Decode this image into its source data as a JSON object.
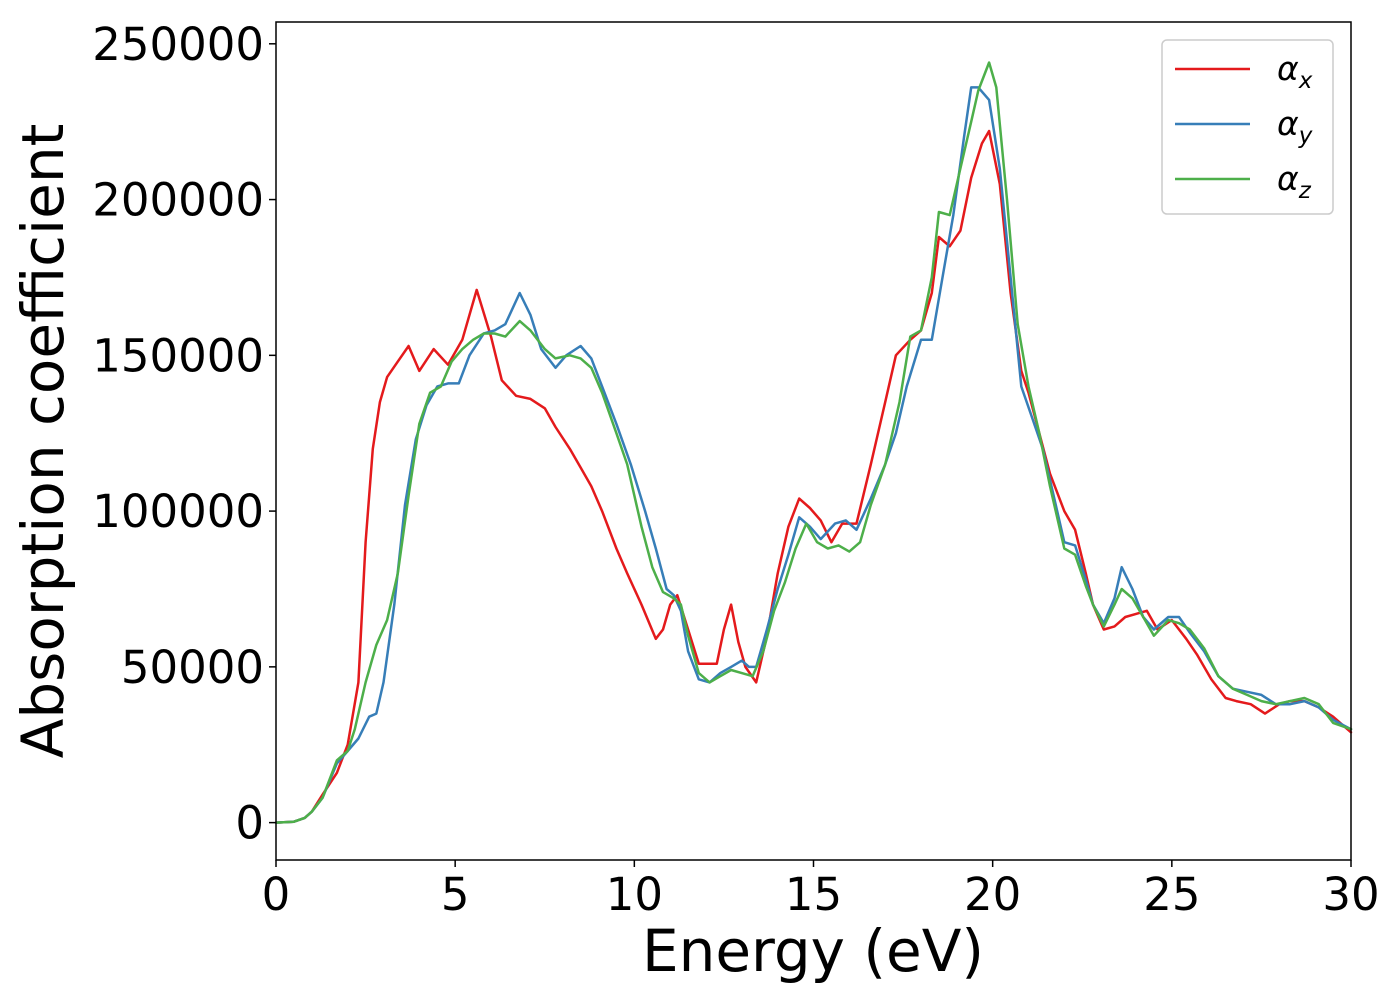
{
  "chart_data": {
    "type": "line",
    "xlabel": "Energy (eV)",
    "ylabel": "Absorption coefficient",
    "xlim": [
      0,
      30
    ],
    "ylim": [
      -12000,
      257000
    ],
    "xticks": [
      0,
      5,
      10,
      15,
      20,
      25,
      30
    ],
    "xtick_labels": [
      "0",
      "5",
      "10",
      "15",
      "20",
      "25",
      "30"
    ],
    "yticks": [
      0,
      50000,
      100000,
      150000,
      200000,
      250000
    ],
    "ytick_labels": [
      "0",
      "50000",
      "100000",
      "150000",
      "200000",
      "250000"
    ],
    "grid": false,
    "legend_position": "top-right",
    "series": [
      {
        "name": "α_x",
        "label_main": "α",
        "label_sub": "x",
        "color": "#e41a1c",
        "x": [
          0,
          0.5,
          0.8,
          1.0,
          1.3,
          1.7,
          2.0,
          2.3,
          2.5,
          2.7,
          2.9,
          3.1,
          3.4,
          3.7,
          4.0,
          4.4,
          4.8,
          5.2,
          5.6,
          6.0,
          6.3,
          6.7,
          7.1,
          7.5,
          7.8,
          8.2,
          8.5,
          8.8,
          9.1,
          9.5,
          9.8,
          10.2,
          10.6,
          10.8,
          11.0,
          11.2,
          11.5,
          11.8,
          12.0,
          12.3,
          12.5,
          12.7,
          12.9,
          13.1,
          13.4,
          13.7,
          14.0,
          14.3,
          14.6,
          14.9,
          15.2,
          15.5,
          15.8,
          16.2,
          16.6,
          17.0,
          17.3,
          17.7,
          18.0,
          18.3,
          18.5,
          18.8,
          19.1,
          19.4,
          19.7,
          19.9,
          20.2,
          20.5,
          20.8,
          21.0,
          21.3,
          21.6,
          22.0,
          22.3,
          22.6,
          22.8,
          23.1,
          23.4,
          23.7,
          24.0,
          24.3,
          24.6,
          25.0,
          25.4,
          25.7,
          26.1,
          26.5,
          26.8,
          27.2,
          27.6,
          28.0,
          28.3,
          28.7,
          29.1,
          29.5,
          30.0
        ],
        "y": [
          0,
          300,
          1500,
          3500,
          9000,
          16000,
          25000,
          45000,
          90000,
          120000,
          135000,
          143000,
          148000,
          153000,
          145000,
          152000,
          147000,
          155000,
          171000,
          156000,
          142000,
          137000,
          136000,
          133000,
          127000,
          120000,
          114000,
          108000,
          100000,
          88000,
          80000,
          70000,
          59000,
          62000,
          70000,
          73000,
          62000,
          51000,
          51000,
          51000,
          62000,
          70000,
          58000,
          50000,
          45000,
          60000,
          80000,
          95000,
          104000,
          101000,
          97000,
          90000,
          96000,
          96000,
          115000,
          135000,
          150000,
          155000,
          158000,
          170000,
          188000,
          185000,
          190000,
          207000,
          218000,
          222000,
          205000,
          170000,
          145000,
          138000,
          125000,
          112000,
          100000,
          94000,
          80000,
          70000,
          62000,
          63000,
          66000,
          67000,
          68000,
          62000,
          65000,
          59000,
          54000,
          46000,
          40000,
          39000,
          38000,
          35000,
          38000,
          39000,
          39000,
          37000,
          34000,
          29000
        ]
      },
      {
        "name": "α_y",
        "label_main": "α",
        "label_sub": "y",
        "color": "#377eb8",
        "x": [
          0,
          0.5,
          0.8,
          1.0,
          1.3,
          1.7,
          2.0,
          2.3,
          2.6,
          2.8,
          3.0,
          3.3,
          3.6,
          3.9,
          4.2,
          4.5,
          4.8,
          5.1,
          5.4,
          5.8,
          6.1,
          6.4,
          6.8,
          7.1,
          7.4,
          7.8,
          8.1,
          8.5,
          8.8,
          9.1,
          9.5,
          9.9,
          10.3,
          10.6,
          10.9,
          11.1,
          11.3,
          11.5,
          11.8,
          12.1,
          12.4,
          12.7,
          13.0,
          13.2,
          13.4,
          13.7,
          14.0,
          14.3,
          14.6,
          14.9,
          15.2,
          15.6,
          15.9,
          16.2,
          16.6,
          17.0,
          17.3,
          17.6,
          18.0,
          18.3,
          18.6,
          18.9,
          19.2,
          19.4,
          19.6,
          19.9,
          20.2,
          20.5,
          20.8,
          21.1,
          21.4,
          21.7,
          22.0,
          22.3,
          22.6,
          22.8,
          23.1,
          23.4,
          23.6,
          23.9,
          24.2,
          24.5,
          24.9,
          25.2,
          25.5,
          25.9,
          26.3,
          26.7,
          27.1,
          27.5,
          27.9,
          28.3,
          28.7,
          29.1,
          29.5,
          30.0
        ],
        "y": [
          0,
          300,
          1500,
          3500,
          8000,
          19000,
          23000,
          27000,
          34000,
          35000,
          45000,
          70000,
          102000,
          123000,
          134000,
          140000,
          141000,
          141000,
          150000,
          157000,
          158000,
          160000,
          170000,
          163000,
          152000,
          146000,
          150000,
          153000,
          149000,
          140000,
          128000,
          115000,
          100000,
          88000,
          75000,
          73000,
          68000,
          55000,
          46000,
          45000,
          48000,
          50000,
          52000,
          50000,
          50000,
          62000,
          75000,
          86000,
          98000,
          95000,
          91000,
          96000,
          97000,
          94000,
          104000,
          115000,
          125000,
          140000,
          155000,
          155000,
          175000,
          195000,
          220000,
          236000,
          236000,
          232000,
          210000,
          175000,
          140000,
          130000,
          120000,
          105000,
          90000,
          89000,
          78000,
          70000,
          64000,
          72000,
          82000,
          75000,
          66000,
          62000,
          66000,
          66000,
          61000,
          55000,
          47000,
          43000,
          42000,
          41000,
          38000,
          38000,
          39000,
          37000,
          33000,
          30000
        ]
      },
      {
        "name": "α_z",
        "label_main": "α",
        "label_sub": "z",
        "color": "#4daf4a",
        "x": [
          0,
          0.5,
          0.8,
          1.0,
          1.3,
          1.7,
          2.0,
          2.2,
          2.5,
          2.8,
          3.1,
          3.4,
          3.7,
          4.0,
          4.3,
          4.6,
          4.9,
          5.2,
          5.5,
          5.8,
          6.1,
          6.4,
          6.8,
          7.1,
          7.5,
          7.8,
          8.2,
          8.5,
          8.8,
          9.1,
          9.5,
          9.8,
          10.2,
          10.5,
          10.8,
          11.1,
          11.3,
          11.5,
          11.8,
          12.1,
          12.4,
          12.7,
          13.0,
          13.3,
          13.6,
          13.9,
          14.2,
          14.5,
          14.8,
          15.1,
          15.4,
          15.7,
          16.0,
          16.3,
          16.6,
          17.0,
          17.4,
          17.7,
          18.0,
          18.3,
          18.5,
          18.8,
          19.1,
          19.4,
          19.6,
          19.9,
          20.1,
          20.4,
          20.7,
          21.0,
          21.3,
          21.6,
          22.0,
          22.3,
          22.6,
          22.8,
          23.1,
          23.4,
          23.6,
          23.9,
          24.2,
          24.5,
          24.9,
          25.2,
          25.5,
          25.9,
          26.3,
          26.7,
          27.1,
          27.5,
          27.9,
          28.3,
          28.7,
          29.1,
          29.5,
          30.0
        ],
        "y": [
          0,
          300,
          1500,
          3500,
          8000,
          20000,
          23000,
          30000,
          45000,
          57000,
          65000,
          80000,
          105000,
          128000,
          138000,
          140000,
          148000,
          152000,
          155000,
          157000,
          157000,
          156000,
          161000,
          158000,
          152000,
          149000,
          150000,
          149000,
          146000,
          138000,
          125000,
          115000,
          95000,
          82000,
          74000,
          72000,
          70000,
          60000,
          48000,
          45000,
          47000,
          49000,
          48000,
          47000,
          55000,
          68000,
          77000,
          88000,
          96000,
          90000,
          88000,
          89000,
          87000,
          90000,
          102000,
          115000,
          135000,
          156000,
          158000,
          175000,
          196000,
          195000,
          210000,
          225000,
          235000,
          244000,
          236000,
          200000,
          160000,
          140000,
          125000,
          108000,
          88000,
          86000,
          76000,
          70000,
          63000,
          70000,
          75000,
          72000,
          66000,
          60000,
          65000,
          64000,
          62000,
          56000,
          47000,
          43000,
          41000,
          39000,
          38000,
          39000,
          40000,
          38000,
          32000,
          30000
        ]
      }
    ]
  }
}
